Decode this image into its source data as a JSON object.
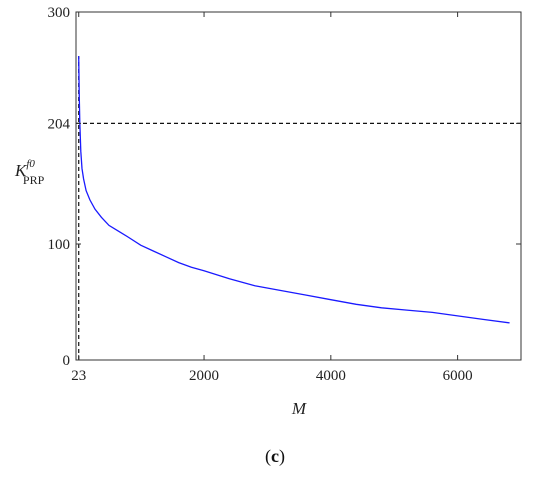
{
  "panel_label_open": "(",
  "panel_label_letter": "c",
  "panel_label_close": ")",
  "chart_data": {
    "type": "line",
    "xlabel": "M",
    "ylabel_main": "K",
    "ylabel_sub": "PRP",
    "ylabel_sup": "f0",
    "xlim": [
      -20,
      7000
    ],
    "ylim": [
      0,
      300
    ],
    "xticks": [
      23,
      2000,
      4000,
      6000
    ],
    "yticks": [
      0,
      100,
      204,
      300
    ],
    "grid": false,
    "colors": {
      "series": "#1a1aff",
      "reference": "#111111"
    },
    "series": [
      {
        "x": [
          23,
          30,
          40,
          55,
          75,
          100,
          140,
          200,
          280,
          380,
          500,
          650,
          800,
          1000,
          1200,
          1400,
          1600,
          1800,
          2000,
          2400,
          2800,
          3200,
          3600,
          4000,
          4400,
          4800,
          5200,
          5600,
          6000,
          6400,
          6820
        ],
        "y": [
          262,
          230,
          205,
          180,
          165,
          156,
          146,
          138,
          130,
          123,
          116,
          111,
          106,
          99,
          94,
          89,
          84,
          80,
          77,
          70,
          64,
          60,
          56,
          52,
          48,
          45,
          43,
          41,
          38,
          35,
          32
        ]
      }
    ],
    "reference_lines": [
      {
        "orientation": "horizontal",
        "value": 204,
        "style": "dashed"
      },
      {
        "orientation": "vertical",
        "value": 23,
        "style": "dashed"
      }
    ]
  }
}
